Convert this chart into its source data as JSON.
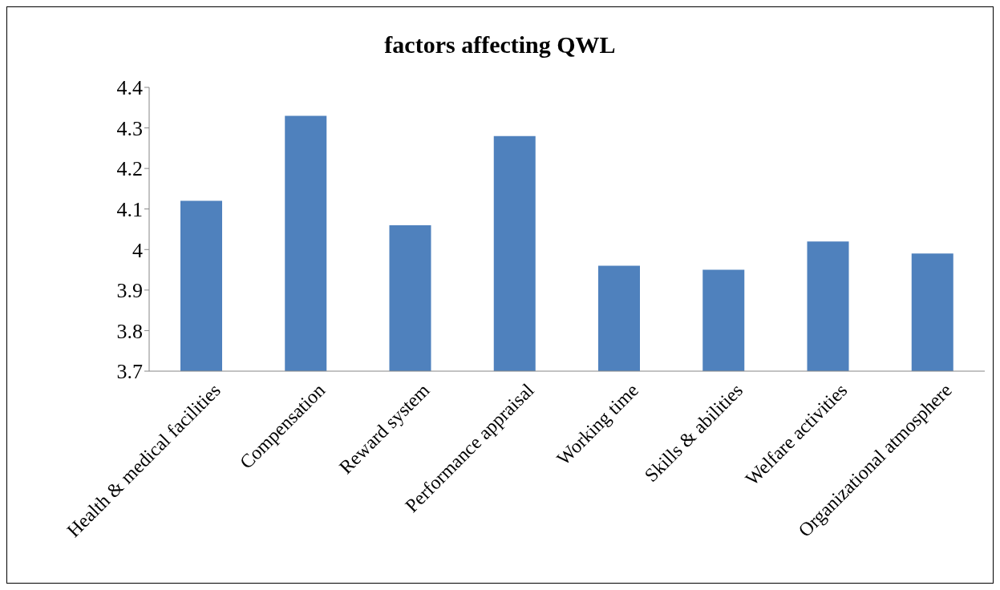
{
  "chart_data": {
    "type": "bar",
    "title": "factors affecting QWL",
    "categories": [
      "Health & medical facilities",
      "Compensation",
      "Reward system",
      "Performance appraisal",
      "Working time",
      "Skills & abilities",
      "Welfare activities",
      "Organizational atmosphere"
    ],
    "values": [
      4.12,
      4.33,
      4.06,
      4.28,
      3.96,
      3.95,
      4.02,
      3.99
    ],
    "color": "#4f81bd",
    "ylim": [
      3.7,
      4.4
    ],
    "yticks": [
      3.7,
      3.8,
      3.9,
      4,
      4.1,
      4.2,
      4.3,
      4.4
    ]
  }
}
